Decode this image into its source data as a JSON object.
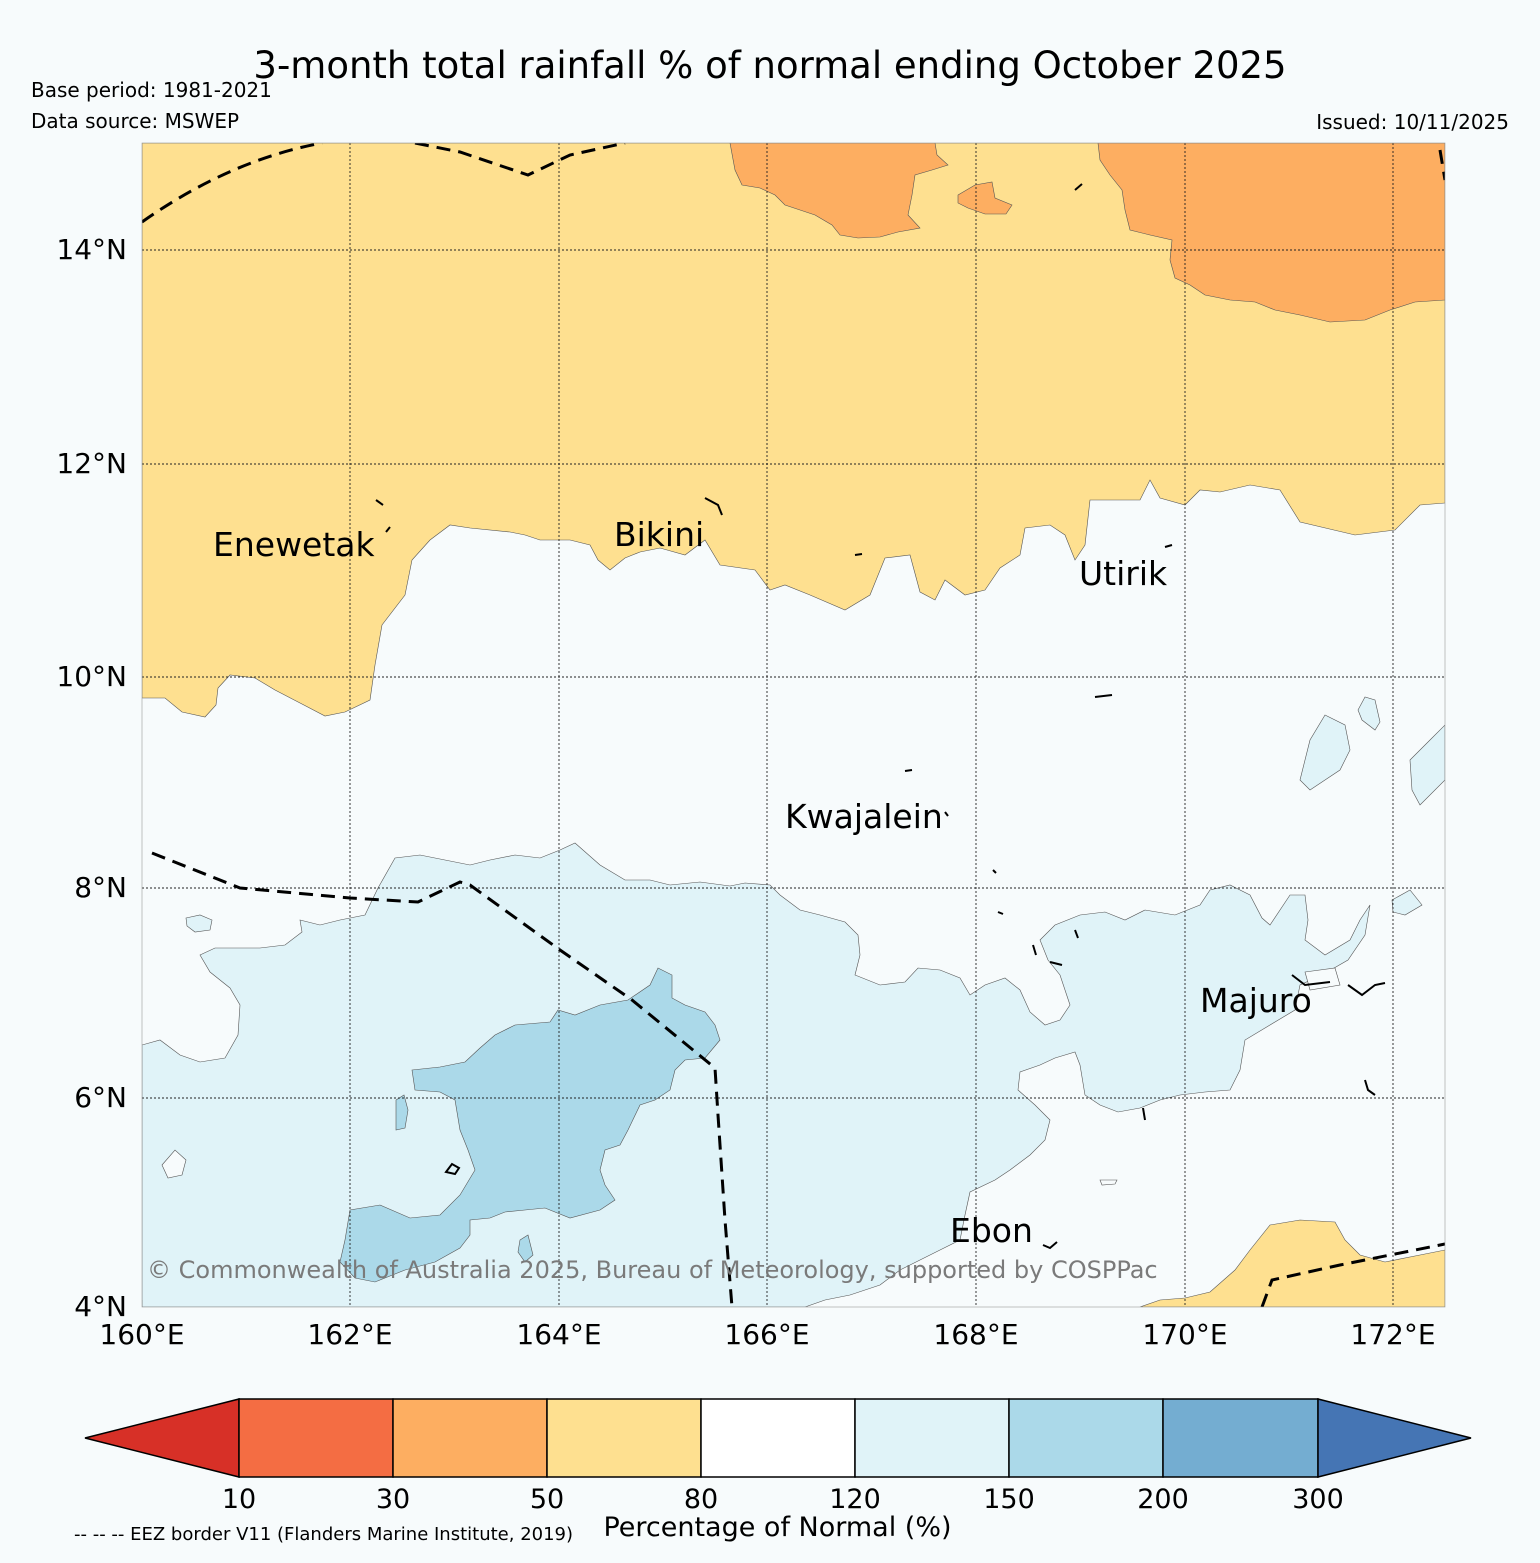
{
  "header": {
    "title": "3-month total rainfall % of normal ending October 2025",
    "base_period": "Base period: 1981-2021",
    "data_source": "Data source: MSWEP",
    "issued": "Issued: 10/11/2025"
  },
  "map": {
    "lat_labels": [
      "14°N",
      "12°N",
      "10°N",
      "8°N",
      "6°N",
      "4°N"
    ],
    "lon_labels": [
      "160°E",
      "162°E",
      "164°E",
      "166°E",
      "168°E",
      "170°E",
      "172°E"
    ],
    "places": [
      "Enewetak",
      "Bikini",
      "Utirik",
      "Kwajalein",
      "Majuro",
      "Ebon"
    ],
    "copyright": "© Commonwealth of Australia 2025, Bureau of Meteorology, supported by COSPPac"
  },
  "legend": {
    "ticks": [
      "10",
      "30",
      "50",
      "80",
      "120",
      "150",
      "200",
      "300"
    ],
    "title": "Percentage of Normal (%)",
    "eez_note": "-- -- -- EEZ border V11 (Flanders Marine Institute, 2019)",
    "colors": [
      "#d73027",
      "#f46d43",
      "#fdae61",
      "#fee090",
      "#ffffff",
      "#e0f3f8",
      "#abd9e9",
      "#74add1",
      "#4575b4"
    ]
  }
}
